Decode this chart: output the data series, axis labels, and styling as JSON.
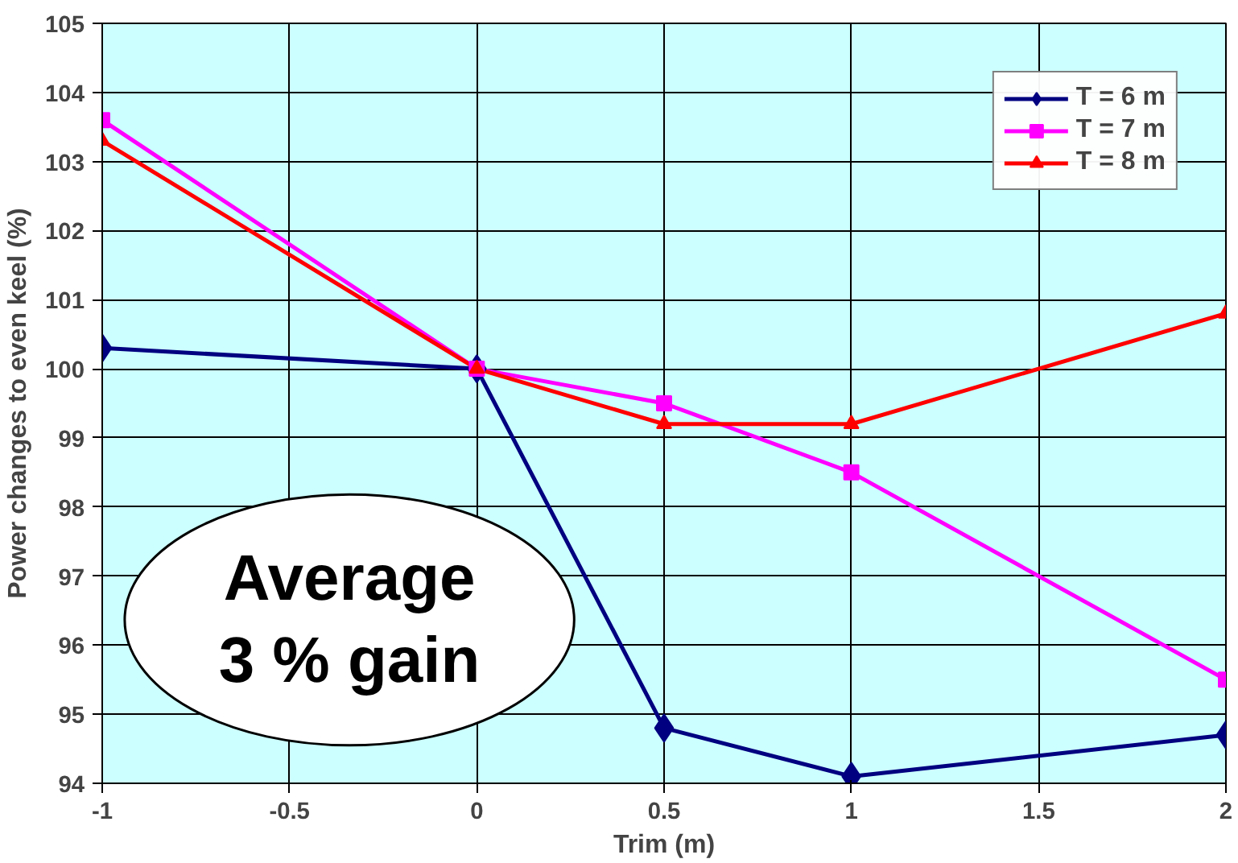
{
  "chart_data": {
    "type": "line",
    "xlabel": "Trim (m)",
    "ylabel": "Power changes to even keel (%)",
    "x": [
      -1,
      0,
      0.5,
      1,
      2
    ],
    "xlim": [
      -1,
      2
    ],
    "xticks": [
      -1,
      -0.5,
      0,
      0.5,
      1,
      1.5,
      2
    ],
    "ylim": [
      94,
      105
    ],
    "yticks": [
      94,
      95,
      96,
      97,
      98,
      99,
      100,
      101,
      102,
      103,
      104,
      105
    ],
    "grid": true,
    "legend": "top right",
    "series": [
      {
        "name": "T = 6 m",
        "color": "#000080",
        "marker": "diamond",
        "values": [
          100.3,
          100,
          94.8,
          94.1,
          94.7
        ]
      },
      {
        "name": "T = 7 m",
        "color": "#ff00ff",
        "marker": "square",
        "values": [
          103.6,
          100,
          99.5,
          98.5,
          95.5
        ]
      },
      {
        "name": "T = 8 m",
        "color": "#ff0000",
        "marker": "triangle",
        "values": [
          103.3,
          100,
          99.2,
          99.2,
          100.8
        ]
      }
    ],
    "annotations": [
      "Average\n3 % gain"
    ]
  }
}
